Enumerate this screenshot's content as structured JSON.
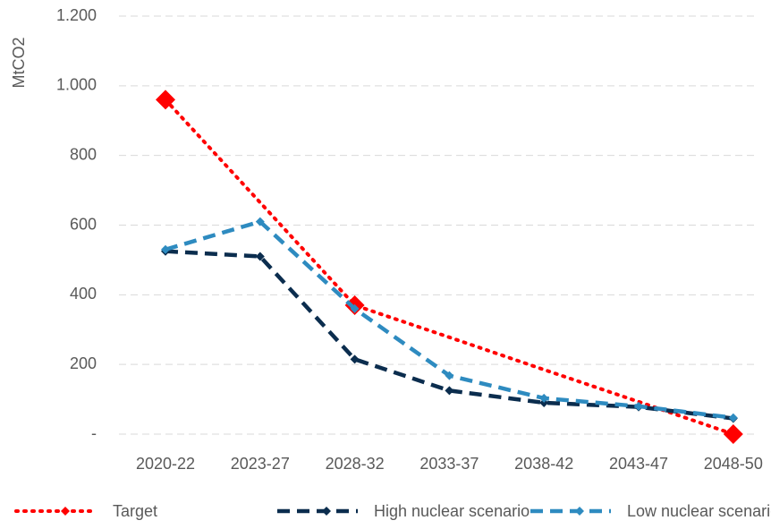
{
  "chart_data": {
    "type": "line",
    "y_label": "MtCO2",
    "categories": [
      "2020-22",
      "2023-27",
      "2028-32",
      "2033-37",
      "2038-42",
      "2043-47",
      "2048-50"
    ],
    "series": [
      {
        "name": "Target",
        "color": "#ff0000",
        "dash": "dotted",
        "values": [
          960,
          665,
          370,
          278,
          185,
          93,
          0
        ],
        "markers": [
          true,
          false,
          true,
          false,
          false,
          false,
          true
        ]
      },
      {
        "name": "High nuclear scenario",
        "color": "#0b2d4e",
        "dash": "dashed",
        "values": [
          525,
          510,
          215,
          125,
          90,
          78,
          45
        ]
      },
      {
        "name": "Low nuclear scenario",
        "color": "#2e8bc0",
        "dash": "dashed",
        "values": [
          530,
          610,
          360,
          168,
          103,
          80,
          47
        ]
      }
    ],
    "ylim": [
      0,
      1200
    ],
    "yticks": [
      {
        "value": 0,
        "label": "-"
      },
      200,
      400,
      600,
      800,
      {
        "value": 1000,
        "label": "1.000"
      },
      {
        "value": 1200,
        "label": "1.200"
      }
    ],
    "grid": true,
    "legend": "bottom"
  }
}
